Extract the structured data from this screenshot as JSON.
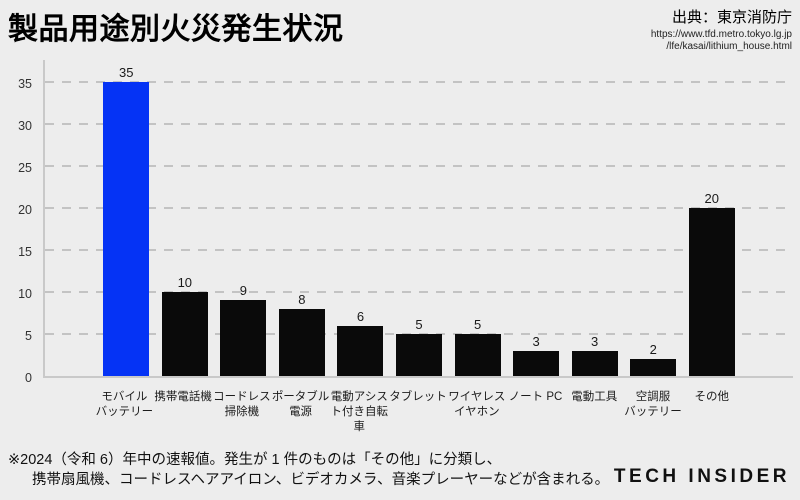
{
  "header": {
    "title": "製品用途別火災発生状況",
    "source_label": "出典：東京消防庁",
    "source_url_line1": "https://www.tfd.metro.tokyo.lg.jp",
    "source_url_line2": "/lfe/kasai/lithium_house.html"
  },
  "chart_data": {
    "type": "bar",
    "title": "製品用途別火災発生状況",
    "categories": [
      "モバイルバッテリー",
      "携帯電話機",
      "コードレス掃除機",
      "ポータブル電源",
      "電動アシスト付き自転車",
      "タブレット",
      "ワイヤレスイヤホン",
      "ノート PC",
      "電動工具",
      "空調服バッテリー",
      "その他"
    ],
    "category_lines": [
      [
        "モバイル",
        "バッテリー"
      ],
      [
        "携帯電話機"
      ],
      [
        "コードレス",
        "掃除機"
      ],
      [
        "ポータブル",
        "電源"
      ],
      [
        "電動アシス",
        "ト付き自転",
        "車"
      ],
      [
        "タブレット"
      ],
      [
        "ワイヤレス",
        "イヤホン"
      ],
      [
        "ノート PC"
      ],
      [
        "電動工具"
      ],
      [
        "空調服",
        "バッテリー"
      ],
      [
        "その他"
      ]
    ],
    "values": [
      35,
      10,
      9,
      8,
      6,
      5,
      5,
      3,
      3,
      2,
      20
    ],
    "xlabel": "",
    "ylabel": "",
    "ylim": [
      0,
      35
    ],
    "yticks": [
      0,
      5,
      10,
      15,
      20,
      25,
      30,
      35
    ],
    "grid": "dashed-horizontal",
    "legend": "none",
    "bar_color": "#0a0a0a",
    "highlight_index": 0,
    "highlight_color": "#0533f5"
  },
  "footer": {
    "note_line1": "※2024（令和 6）年中の速報値。発生が 1 件のものは「その他」に分類し、",
    "note_line2": "携帯扇風機、コードレスヘアアイロン、ビデオカメラ、音楽プレーヤーなどが含まれる。",
    "brand": "TECH INSIDER"
  },
  "colors": {
    "background": "#ededed",
    "gridline": "#c3c3c3",
    "axis": "#c9c9c9"
  }
}
